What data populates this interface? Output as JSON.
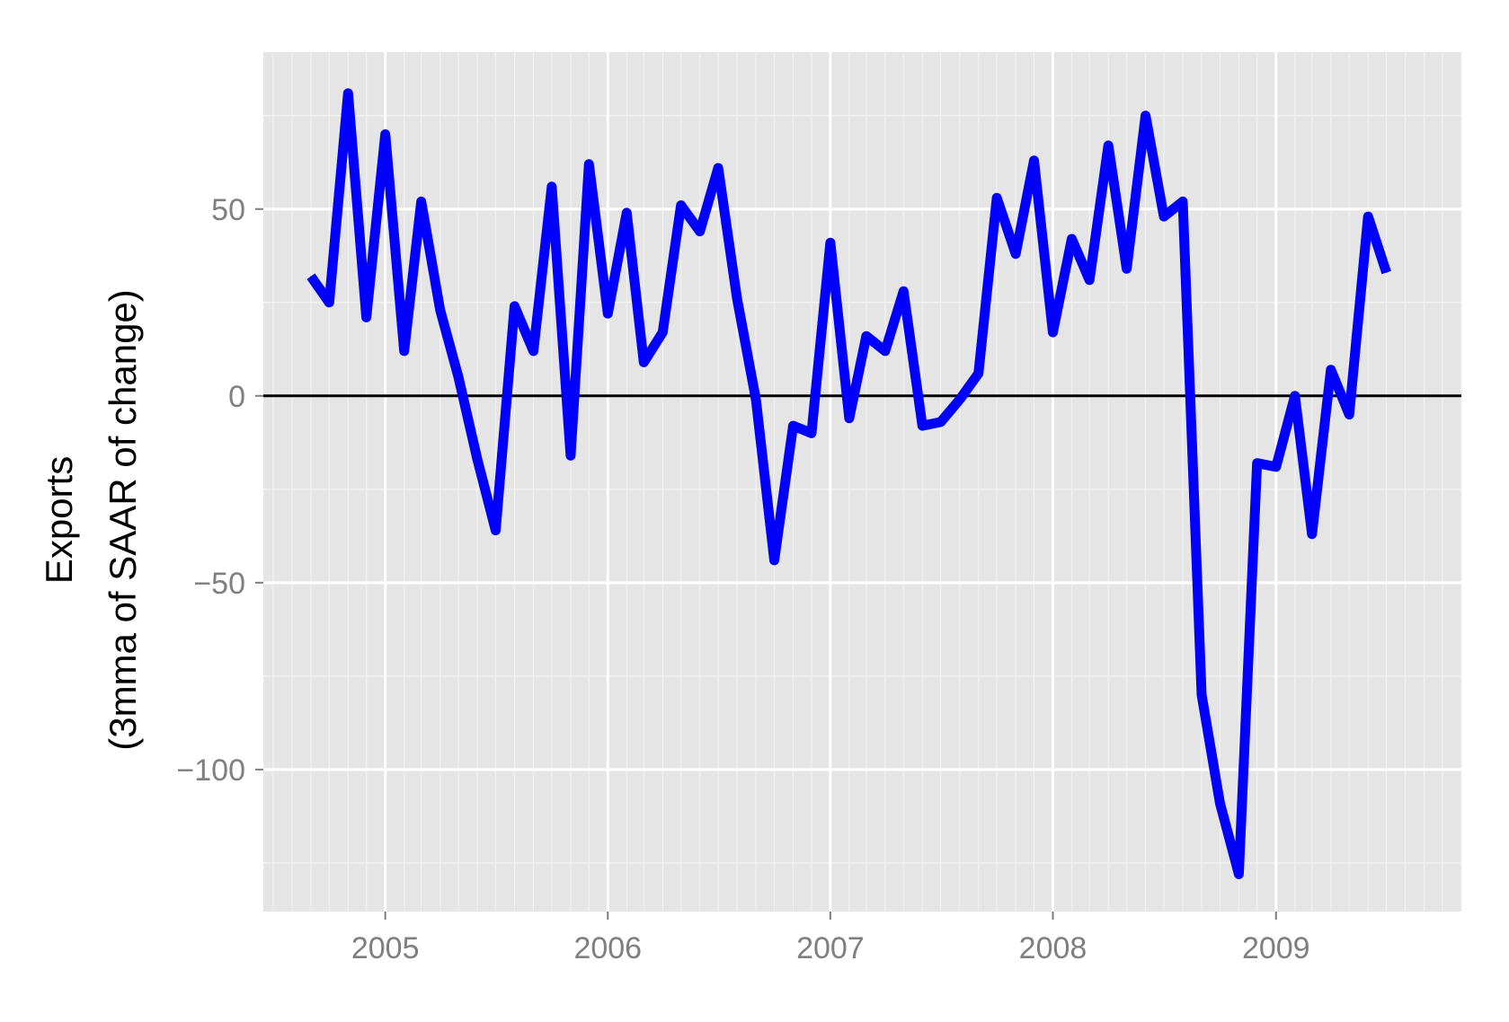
{
  "chart_data": {
    "type": "line",
    "title": "",
    "xlabel": "",
    "ylabel": [
      "Exports",
      "(3mma of SAAR of change)"
    ],
    "x_ticks": [
      "2005",
      "2006",
      "2007",
      "2008",
      "2009"
    ],
    "y_ticks": [
      {
        "value": -100,
        "label": "−100"
      },
      {
        "value": -50,
        "label": "−50"
      },
      {
        "value": 0,
        "label": "0"
      },
      {
        "value": 50,
        "label": "50"
      }
    ],
    "xlim": [
      "2004-06-15",
      "2009-11-01"
    ],
    "ylim": [
      -138,
      92
    ],
    "reference_line": 0,
    "grid": true,
    "colors": {
      "panel_background": "#e5e5e5",
      "grid_major": "#ffffff",
      "grid_minor": "#f2f2f2",
      "series": "#0000ff",
      "reference_line": "#000000"
    },
    "series": [
      {
        "x": [
          "2004-09",
          "2004-10",
          "2004-11",
          "2004-12",
          "2005-01",
          "2005-02",
          "2005-03",
          "2005-04",
          "2005-05",
          "2005-06",
          "2005-07",
          "2005-08",
          "2005-09",
          "2005-10",
          "2005-11",
          "2005-12",
          "2006-01",
          "2006-02",
          "2006-03",
          "2006-04",
          "2006-05",
          "2006-06",
          "2006-07",
          "2006-08",
          "2006-09",
          "2006-10",
          "2006-11",
          "2006-12",
          "2007-01",
          "2007-02",
          "2007-03",
          "2007-04",
          "2007-05",
          "2007-06",
          "2007-07",
          "2007-08",
          "2007-09",
          "2007-10",
          "2007-11",
          "2007-12",
          "2008-01",
          "2008-02",
          "2008-03",
          "2008-04",
          "2008-05",
          "2008-06",
          "2008-07",
          "2008-08",
          "2008-09",
          "2008-10",
          "2008-11",
          "2008-12",
          "2009-01",
          "2009-02",
          "2009-03",
          "2009-04",
          "2009-05",
          "2009-06",
          "2009-07"
        ],
        "values": [
          32,
          25,
          81,
          21,
          70,
          12,
          52,
          23,
          5,
          -17,
          -36,
          24,
          12,
          56,
          -16,
          62,
          22,
          49,
          9,
          17,
          51,
          44,
          61,
          26,
          -1,
          -44,
          -8,
          -10,
          41,
          -6,
          16,
          12,
          28,
          -8,
          -7,
          -1,
          6,
          53,
          38,
          63,
          17,
          42,
          31,
          67,
          34,
          75,
          48,
          52,
          -80,
          -109,
          -128,
          -18,
          -19,
          0,
          -37,
          7,
          -5,
          48,
          33
        ]
      }
    ]
  }
}
